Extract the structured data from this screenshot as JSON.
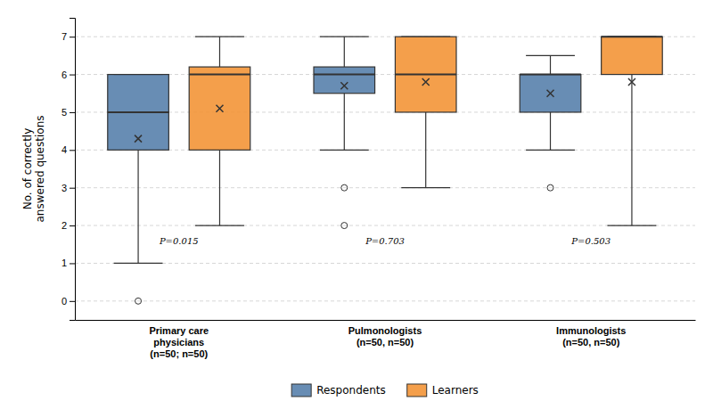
{
  "chart_data": {
    "type": "box",
    "categories": [
      "Primary care\nphysicians\n(n=50; n=50)",
      "Pulmonologists\n(n=50, n=50)",
      "Immunologists\n(n=50, n=50)"
    ],
    "y_label": "No. of correctly\nanswered questions",
    "series": [
      {
        "name": "Respondents",
        "values": [
          {
            "q1": 4,
            "median": 5,
            "q3": 6,
            "whisker_low": 1,
            "whisker_high": 6,
            "mean": 4.3,
            "outliers": [
              0
            ]
          },
          {
            "q1": 5.5,
            "median": 6,
            "q3": 6.2,
            "whisker_low": 4,
            "whisker_high": 7,
            "mean": 5.7,
            "outliers": [
              2,
              3
            ]
          },
          {
            "q1": 5,
            "median": 6,
            "q3": 6,
            "whisker_low": 4,
            "whisker_high": 6.5,
            "mean": 5.5,
            "outliers": [
              3
            ]
          }
        ]
      },
      {
        "name": "Learners",
        "values": [
          {
            "q1": 4,
            "median": 6,
            "q3": 6.2,
            "whisker_low": 2,
            "whisker_high": 7,
            "mean": 5.1,
            "outliers": []
          },
          {
            "q1": 5,
            "median": 6,
            "q3": 7,
            "whisker_low": 3,
            "whisker_high": 7,
            "mean": 5.8,
            "outliers": []
          },
          {
            "q1": 6,
            "median": 7,
            "q3": 7,
            "whisker_low": 2,
            "whisker_high": 7,
            "mean": 5.8,
            "outliers": []
          }
        ]
      }
    ],
    "annotations": [
      {
        "text": "P=0.015",
        "y": 1.5
      },
      {
        "text": "P=0.703",
        "y": 1.5
      },
      {
        "text": "P=0.503",
        "y": 1.5
      }
    ],
    "ylim": [
      -0.5,
      7.5
    ],
    "yticks": [
      0,
      1,
      2,
      3,
      4,
      5,
      6,
      7
    ],
    "grid": true,
    "legend": "bottom"
  }
}
